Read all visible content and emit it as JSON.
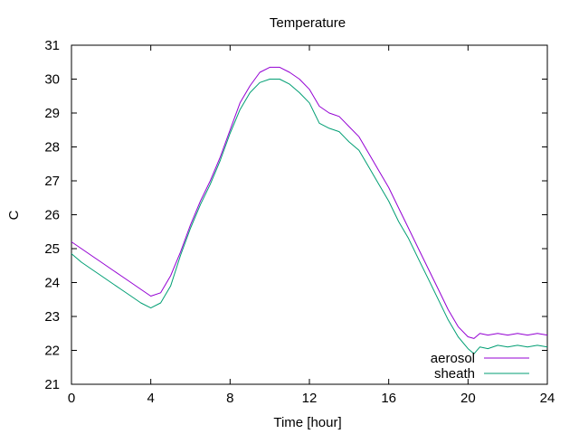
{
  "chart_data": {
    "type": "line",
    "title": "Temperature",
    "xlabel": "Time [hour]",
    "ylabel": "C",
    "xlim": [
      0,
      24
    ],
    "ylim": [
      21,
      31
    ],
    "x_ticks": [
      0,
      4,
      8,
      12,
      16,
      20,
      24
    ],
    "y_ticks": [
      21,
      22,
      23,
      24,
      25,
      26,
      27,
      28,
      29,
      30,
      31
    ],
    "grid": false,
    "legend_position": "bottom-right",
    "series": [
      {
        "name": "aerosol",
        "color": "#9400d3",
        "x": [
          0,
          0.5,
          1,
          1.5,
          2,
          2.5,
          3,
          3.5,
          4,
          4.5,
          5,
          5.5,
          6,
          6.5,
          7,
          7.5,
          8,
          8.5,
          9,
          9.5,
          10,
          10.5,
          11,
          11.5,
          12,
          12.5,
          13,
          13.5,
          14,
          14.5,
          15,
          15.5,
          16,
          16.5,
          17,
          17.5,
          18,
          18.5,
          19,
          19.5,
          20,
          20.3,
          20.6,
          21,
          21.5,
          22,
          22.5,
          23,
          23.5,
          24
        ],
        "y": [
          25.2,
          25.0,
          24.8,
          24.6,
          24.4,
          24.2,
          24.0,
          23.8,
          23.6,
          23.7,
          24.2,
          24.9,
          25.7,
          26.4,
          27.0,
          27.7,
          28.5,
          29.3,
          29.8,
          30.2,
          30.35,
          30.35,
          30.2,
          30.0,
          29.7,
          29.2,
          29.0,
          28.9,
          28.6,
          28.3,
          27.8,
          27.3,
          26.8,
          26.2,
          25.6,
          25.0,
          24.4,
          23.8,
          23.2,
          22.7,
          22.4,
          22.35,
          22.5,
          22.45,
          22.5,
          22.45,
          22.5,
          22.45,
          22.5,
          22.45
        ]
      },
      {
        "name": "sheath",
        "color": "#009e73",
        "x": [
          0,
          0.5,
          1,
          1.5,
          2,
          2.5,
          3,
          3.5,
          4,
          4.5,
          5,
          5.5,
          6,
          6.5,
          7,
          7.5,
          8,
          8.5,
          9,
          9.5,
          10,
          10.5,
          11,
          11.5,
          12,
          12.5,
          13,
          13.5,
          14,
          14.5,
          15,
          15.5,
          16,
          16.5,
          17,
          17.5,
          18,
          18.5,
          19,
          19.5,
          20,
          20.3,
          20.6,
          21,
          21.5,
          22,
          22.5,
          23,
          23.5,
          24
        ],
        "y": [
          24.85,
          24.6,
          24.4,
          24.2,
          24.0,
          23.8,
          23.6,
          23.4,
          23.25,
          23.4,
          23.9,
          24.8,
          25.6,
          26.3,
          26.9,
          27.6,
          28.4,
          29.1,
          29.6,
          29.9,
          30.0,
          30.0,
          29.85,
          29.6,
          29.3,
          28.7,
          28.55,
          28.45,
          28.15,
          27.9,
          27.4,
          26.9,
          26.4,
          25.8,
          25.3,
          24.7,
          24.1,
          23.5,
          22.9,
          22.4,
          22.05,
          21.9,
          22.1,
          22.05,
          22.15,
          22.1,
          22.15,
          22.1,
          22.15,
          22.1
        ]
      }
    ]
  }
}
